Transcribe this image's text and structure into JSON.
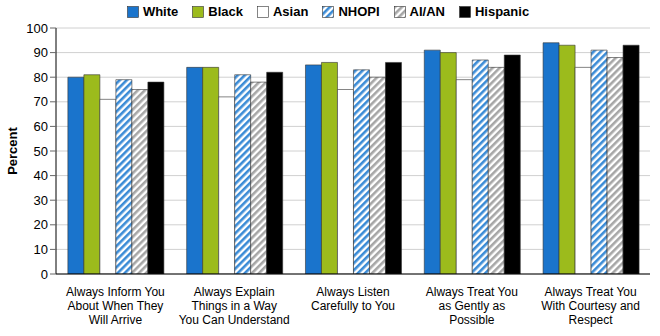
{
  "chart_data": {
    "type": "bar",
    "y_label": "Percent",
    "categories": [
      "Always Inform You About When They Will Arrive",
      "Always Explain Things in a Way You Can Understand",
      "Always Listen Carefully to You",
      "Always Treat You as Gently as Possible",
      "Always Treat You With Courtesy and Respect"
    ],
    "series": [
      {
        "name": "White",
        "color": "#1a74cc",
        "values": [
          80,
          84,
          85,
          91,
          94
        ]
      },
      {
        "name": "Black",
        "color": "#9cbb1c",
        "values": [
          81,
          84,
          86,
          90,
          93
        ]
      },
      {
        "name": "Asian",
        "color": "#ffffff",
        "values": [
          71,
          72,
          75,
          79,
          84
        ]
      },
      {
        "name": "NHOPI",
        "color": "#3a8bd6",
        "values": [
          79,
          81,
          83,
          87,
          91
        ]
      },
      {
        "name": "AI/AN",
        "color": "#a6a6a6",
        "values": [
          75,
          78,
          80,
          84,
          88
        ]
      },
      {
        "name": "Hispanic",
        "color": "#000000",
        "values": [
          78,
          82,
          86,
          89,
          93
        ]
      }
    ],
    "ylim": [
      0,
      100
    ],
    "yticks": [
      0,
      10,
      20,
      30,
      40,
      50,
      60,
      70,
      80,
      90,
      100
    ],
    "grid": true,
    "legend": "top"
  }
}
